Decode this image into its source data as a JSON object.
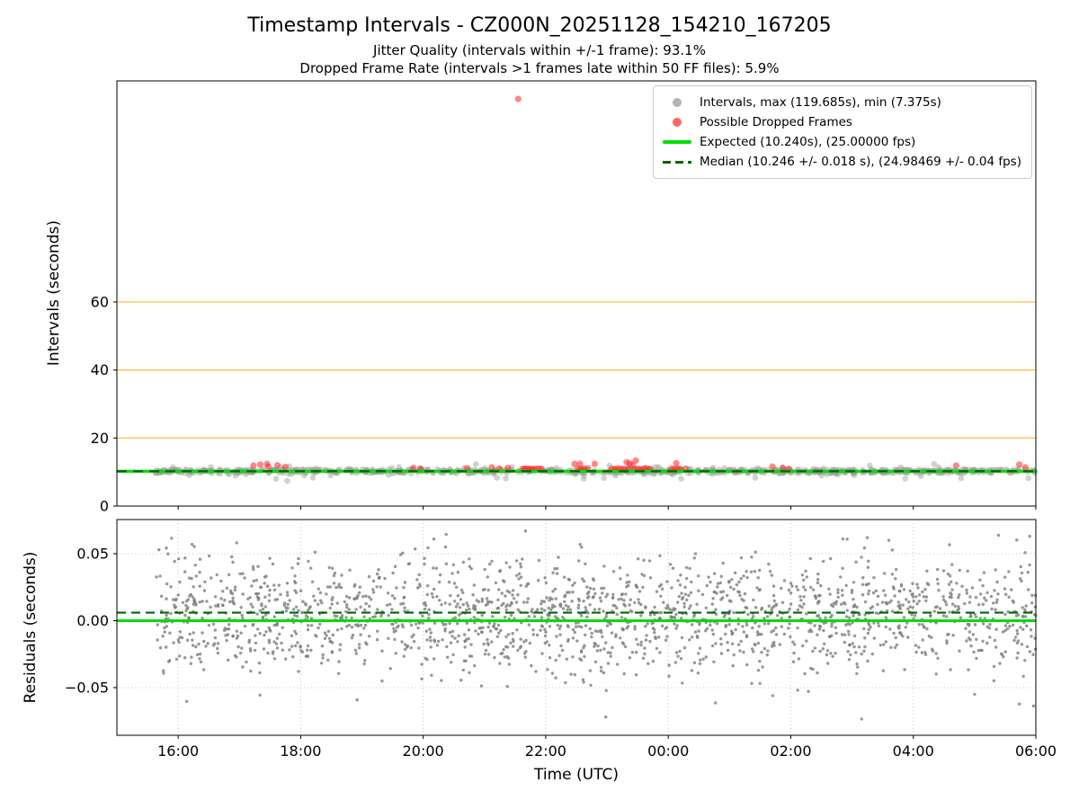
{
  "figure": {
    "title": "Timestamp Intervals - CZ000N_20251128_154210_167205",
    "subtitle1": "Jitter Quality (intervals within +/-1 frame): 93.1%",
    "subtitle2": "Dropped Frame Rate (intervals >1 frames late within 50 FF files): 5.9%"
  },
  "colors": {
    "expected_green": "#00dd00",
    "median_dark_green": "#006400",
    "grid_orange": "#ffc44d",
    "gray_marker": "#999999",
    "red_marker": "#ff2222",
    "residual_marker": "#7d7d7d",
    "grid_dotted": "#c4c4c4",
    "spine": "#000000"
  },
  "chart_data": [
    {
      "type": "scatter",
      "title": "Timestamp Intervals - CZ000N_20251128_154210_167205",
      "ylabel": "Intervals (seconds)",
      "xlim_hours": [
        15,
        30
      ],
      "ylim": [
        0,
        125
      ],
      "yticks": [
        0,
        20,
        40,
        60
      ],
      "ytick_labels": [
        "0",
        "20",
        "40",
        "60"
      ],
      "xtick_hours": [
        16,
        18,
        20,
        22,
        24,
        26,
        28,
        30
      ],
      "xtick_labels": [
        "16:00",
        "18:00",
        "20:00",
        "22:00",
        "00:00",
        "02:00",
        "04:00",
        "06:00"
      ],
      "grid_y": [
        20,
        40,
        60
      ],
      "legend_position": "upper right",
      "stats": {
        "max_s": 119.685,
        "min_s": 7.375
      },
      "expected_line": {
        "value": 10.24,
        "fps": "25.00000"
      },
      "median_line": {
        "value": 10.246,
        "plus_minus_s": 0.018,
        "fps": "24.98469",
        "fps_plus_minus": 0.04
      },
      "legend": [
        {
          "label": "Intervals, max (119.685s), min (7.375s)",
          "marker": "gray-dot"
        },
        {
          "label": "Possible Dropped Frames",
          "marker": "red-dot"
        },
        {
          "label": "Expected (10.240s), (25.00000 fps)",
          "marker": "green-line"
        },
        {
          "label": "Median (10.246 +/- 0.018 s), (24.98469 +/- 0.04 fps)",
          "marker": "dark-green-dashed-line"
        }
      ],
      "gray_points_gen": {
        "seed": 12345,
        "count": 800,
        "x_start": 15.62,
        "x_end": 30.0,
        "base": 10.24,
        "frac_core": 0.86,
        "frac_mid": 0.11,
        "spread_core": 1.1,
        "spread_mid": 2.6,
        "spread_wide": 4.4
      },
      "gray_points_extra": [
        [
          17.78,
          7.375
        ],
        [
          17.6,
          7.95
        ],
        [
          18.2,
          8.35
        ],
        [
          21.35,
          8.15
        ],
        [
          22.62,
          8.05
        ],
        [
          22.95,
          8.25
        ],
        [
          25.42,
          8.3
        ],
        [
          29.88,
          8.2
        ]
      ],
      "red_points": [
        [
          17.23,
          11.9
        ],
        [
          17.34,
          12.2
        ],
        [
          17.45,
          12.4
        ],
        [
          17.47,
          11.6
        ],
        [
          17.62,
          12.0
        ],
        [
          17.75,
          11.5
        ],
        [
          19.84,
          11.2
        ],
        [
          19.95,
          11.0
        ],
        [
          20.72,
          11.15
        ],
        [
          21.12,
          11.4
        ],
        [
          21.24,
          11.05
        ],
        [
          21.38,
          11.2
        ],
        [
          21.62,
          10.95
        ],
        [
          21.66,
          11.0
        ],
        [
          21.7,
          11.05
        ],
        [
          21.74,
          10.9
        ],
        [
          21.78,
          11.0
        ],
        [
          21.83,
          10.95
        ],
        [
          21.88,
          11.05
        ],
        [
          21.93,
          11.0
        ],
        [
          22.47,
          12.4
        ],
        [
          22.52,
          11.0
        ],
        [
          22.56,
          12.45
        ],
        [
          22.58,
          10.95
        ],
        [
          22.63,
          11.05
        ],
        [
          22.68,
          10.9
        ],
        [
          22.8,
          12.4
        ],
        [
          23.08,
          11.0
        ],
        [
          23.13,
          10.95
        ],
        [
          23.18,
          11.1
        ],
        [
          23.22,
          10.9
        ],
        [
          23.27,
          11.0
        ],
        [
          23.32,
          12.9
        ],
        [
          23.35,
          11.05
        ],
        [
          23.37,
          12.5
        ],
        [
          23.42,
          12.2
        ],
        [
          23.45,
          10.95
        ],
        [
          23.47,
          13.4
        ],
        [
          23.5,
          11.0
        ],
        [
          23.55,
          10.9
        ],
        [
          23.6,
          11.05
        ],
        [
          23.65,
          10.95
        ],
        [
          23.7,
          11.0
        ],
        [
          24.05,
          11.0
        ],
        [
          24.1,
          10.95
        ],
        [
          24.13,
          12.6
        ],
        [
          24.15,
          11.05
        ],
        [
          24.2,
          10.9
        ],
        [
          24.28,
          11.0
        ],
        [
          25.7,
          11.6
        ],
        [
          25.87,
          11.2
        ],
        [
          25.97,
          10.95
        ],
        [
          28.7,
          11.9
        ],
        [
          29.73,
          12.2
        ],
        [
          29.83,
          11.4
        ]
      ],
      "red_outlier": [
        21.55,
        119.685
      ]
    },
    {
      "type": "scatter",
      "ylabel": "Residuals (seconds)",
      "xlabel": "Time (UTC)",
      "xlim_hours": [
        15,
        30
      ],
      "ylim": [
        -0.0856,
        0.0755
      ],
      "yticks": [
        -0.05,
        0.0,
        0.05
      ],
      "ytick_labels": [
        "−0.05",
        "0.00",
        "0.05"
      ],
      "xtick_hours": [
        16,
        18,
        20,
        22,
        24,
        26,
        28,
        30
      ],
      "xtick_labels": [
        "16:00",
        "18:00",
        "20:00",
        "22:00",
        "00:00",
        "02:00",
        "04:00",
        "06:00"
      ],
      "grid": "dotted-both-axes",
      "zero_line": 0.0,
      "median_line": 0.006,
      "points_gen": {
        "seed": 777,
        "count": 1900,
        "x_start": 15.64,
        "x_end": 30.0,
        "mean": 0.004,
        "sd": 0.021,
        "clamp_min": -0.074,
        "clamp_max": 0.066
      },
      "points_extra": [
        [
          21.67,
          0.067
        ],
        [
          22.98,
          -0.072
        ],
        [
          26.85,
          0.061
        ],
        [
          27.25,
          0.062
        ],
        [
          27.6,
          0.06
        ],
        [
          29.0,
          -0.055
        ],
        [
          29.9,
          0.063
        ]
      ]
    }
  ]
}
